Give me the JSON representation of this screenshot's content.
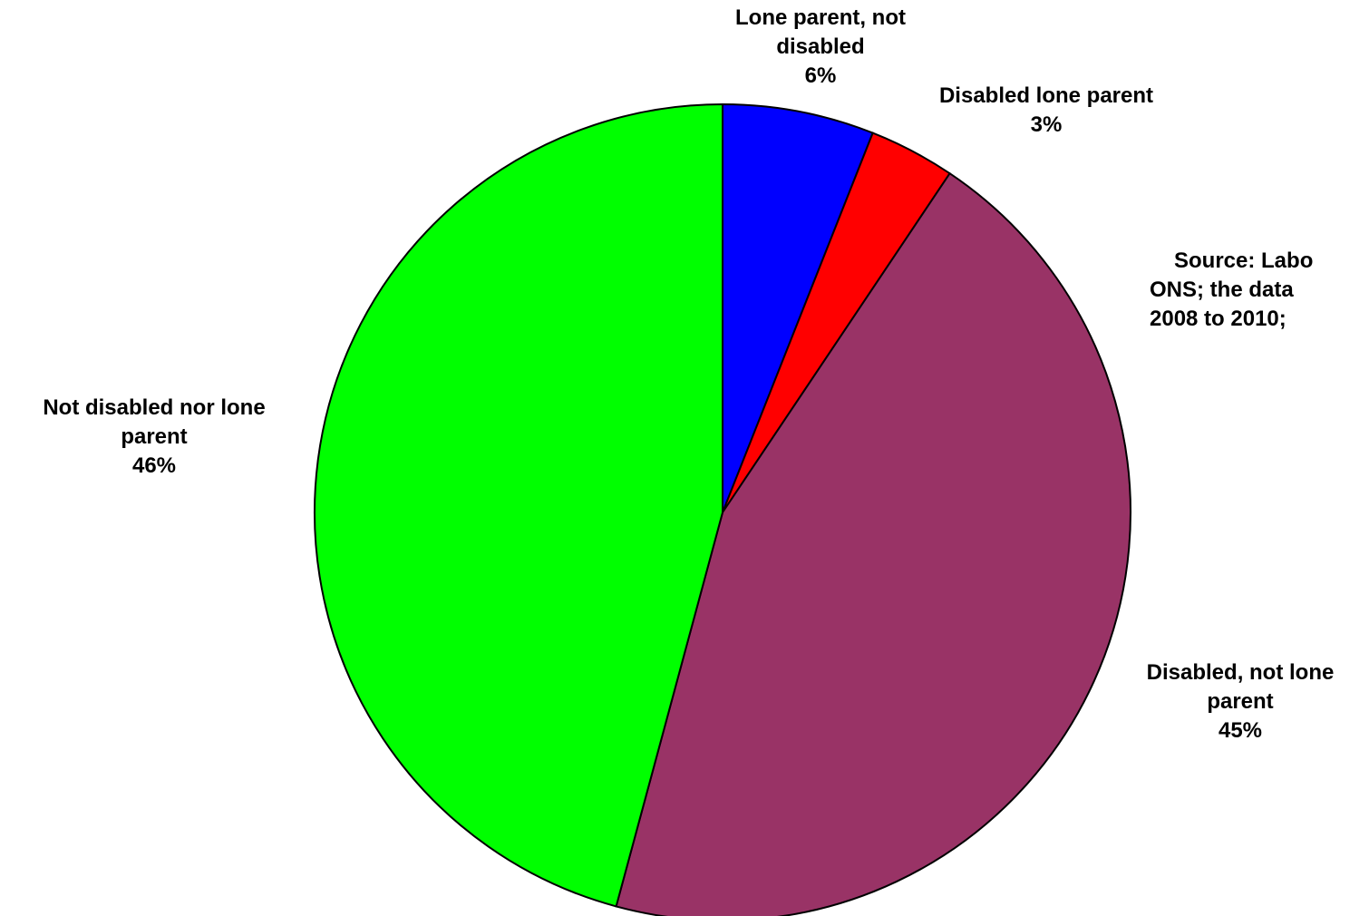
{
  "chart_data": {
    "type": "pie",
    "title": "",
    "slices": [
      {
        "label_lines": [
          "Lone parent, not",
          "disabled"
        ],
        "percent_label": "6%",
        "value": 6,
        "color": "#0000FF"
      },
      {
        "label_lines": [
          "Disabled lone parent"
        ],
        "percent_label": "3%",
        "value": 3.4,
        "color": "#FF0000"
      },
      {
        "label_lines": [
          "Disabled, not lone",
          "parent"
        ],
        "percent_label": "45%",
        "value": 44.8,
        "color": "#993366"
      },
      {
        "label_lines": [
          "Not disabled nor lone",
          "parent"
        ],
        "percent_label": "46%",
        "value": 45.8,
        "color": "#00FF00"
      }
    ],
    "start": "12 o'clock",
    "direction": "clockwise",
    "legend": "none"
  },
  "source_note": {
    "lines": [
      "Source: Labo",
      "ONS; the data",
      "2008 to 2010;"
    ]
  }
}
